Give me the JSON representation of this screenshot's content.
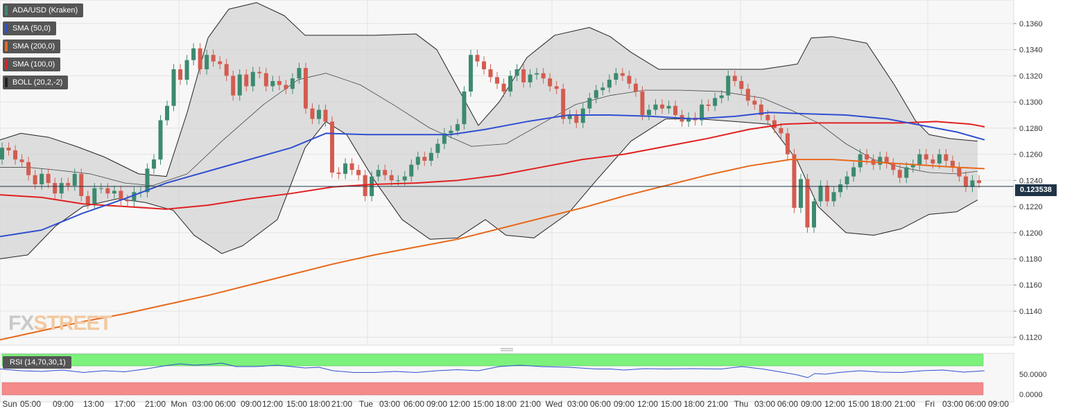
{
  "legend": [
    {
      "label": "ADA/USD (Kraken)",
      "color": "#3c8a6f"
    },
    {
      "label": "SMA (50,0)",
      "color": "#2f4fd0"
    },
    {
      "label": "SMA (200,0)",
      "color": "#e8681b"
    },
    {
      "label": "SMA (100,0)",
      "color": "#e02020"
    },
    {
      "label": "BOLL (20,2,-2)",
      "color": "#222222"
    }
  ],
  "watermark": {
    "part1": "FX",
    "part2": "STREET"
  },
  "last_price_label": "0.123538",
  "rsi_label": "RSI (14,70,30,1)",
  "colors": {
    "bull": "#3c8a6f",
    "bear": "#d35c4f",
    "sma50": "#2f4fd0",
    "sma100": "#e02020",
    "sma200": "#e8681b",
    "boll": "#222222",
    "rsi_line": "#2f4fd0",
    "rsi_over": "#7cf27c",
    "rsi_under": "#f48a8a"
  },
  "chart_data": {
    "type": "candlestick",
    "ylim": [
      0.1114,
      0.1378
    ],
    "y_ticks": [
      "0.1360",
      "0.1340",
      "0.1320",
      "0.1300",
      "0.1280",
      "0.1260",
      "0.1240",
      "0.1220",
      "0.1200",
      "0.1180",
      "0.1160",
      "0.1140",
      "0.1120"
    ],
    "x_ticks": [
      "Sun",
      "05:00",
      "09:00",
      "13:00",
      "17:00",
      "21:00",
      "Mon",
      "03:00",
      "06:00",
      "09:00",
      "12:00",
      "15:00",
      "18:00",
      "21:00",
      "Tue",
      "03:00",
      "06:00",
      "09:00",
      "12:00",
      "15:00",
      "18:00",
      "21:00",
      "Wed",
      "03:00",
      "06:00",
      "09:00",
      "12:00",
      "15:00",
      "18:00",
      "21:00",
      "Thu",
      "03:00",
      "06:00",
      "09:00",
      "12:00",
      "15:00",
      "18:00",
      "21:00",
      "Fri",
      "03:00",
      "06:00",
      "09:00"
    ],
    "last_price": 0.123538,
    "candle_closes": [
      0.1265,
      0.1263,
      0.1256,
      0.1254,
      0.1244,
      0.1237,
      0.1245,
      0.1238,
      0.123,
      0.1238,
      0.1236,
      0.1245,
      0.1228,
      0.1222,
      0.1234,
      0.1234,
      0.123,
      0.1232,
      0.1225,
      0.1224,
      0.1231,
      0.1231,
      0.1249,
      0.1256,
      0.1286,
      0.1297,
      0.1325,
      0.1317,
      0.1332,
      0.1341,
      0.1325,
      0.1336,
      0.1331,
      0.1329,
      0.132,
      0.1305,
      0.1321,
      0.1312,
      0.1323,
      0.1322,
      0.1312,
      0.1316,
      0.1313,
      0.131,
      0.1318,
      0.1326,
      0.1295,
      0.1287,
      0.1294,
      0.1285,
      0.1246,
      0.1245,
      0.1253,
      0.1248,
      0.1244,
      0.1228,
      0.1243,
      0.1248,
      0.1244,
      0.124,
      0.124,
      0.1243,
      0.1252,
      0.1258,
      0.1255,
      0.1261,
      0.1268,
      0.1276,
      0.1278,
      0.1283,
      0.1308,
      0.1336,
      0.1331,
      0.1325,
      0.1319,
      0.1314,
      0.1308,
      0.132,
      0.1325,
      0.1315,
      0.1321,
      0.1322,
      0.1318,
      0.1312,
      0.131,
      0.1287,
      0.129,
      0.1284,
      0.1295,
      0.1303,
      0.1309,
      0.1311,
      0.1317,
      0.1322,
      0.132,
      0.1314,
      0.1308,
      0.129,
      0.1294,
      0.1298,
      0.1295,
      0.1297,
      0.129,
      0.1285,
      0.1288,
      0.1286,
      0.1298,
      0.1297,
      0.1303,
      0.1305,
      0.132,
      0.1316,
      0.131,
      0.1301,
      0.1298,
      0.129,
      0.1286,
      0.128,
      0.1276,
      0.126,
      0.1219,
      0.1241,
      0.1204,
      0.1224,
      0.1236,
      0.1224,
      0.1231,
      0.1237,
      0.1243,
      0.125,
      0.126,
      0.1256,
      0.1252,
      0.1258,
      0.1253,
      0.1248,
      0.1242,
      0.125,
      0.1252,
      0.126,
      0.1256,
      0.1253,
      0.126,
      0.1255,
      0.125,
      0.1243,
      0.1235,
      0.124,
      0.1238
    ],
    "first_open": 0.1256,
    "sma50": [
      [
        0,
        0.1197
      ],
      [
        60,
        0.1202
      ],
      [
        120,
        0.1215
      ],
      [
        180,
        0.1226
      ],
      [
        240,
        0.1238
      ],
      [
        300,
        0.1247
      ],
      [
        360,
        0.1256
      ],
      [
        420,
        0.1265
      ],
      [
        470,
        0.1276
      ],
      [
        530,
        0.1275
      ],
      [
        590,
        0.1275
      ],
      [
        650,
        0.1275
      ],
      [
        700,
        0.1279
      ],
      [
        760,
        0.1285
      ],
      [
        820,
        0.129
      ],
      [
        880,
        0.129
      ],
      [
        940,
        0.1289
      ],
      [
        1000,
        0.1287
      ],
      [
        1060,
        0.1289
      ],
      [
        1110,
        0.1292
      ],
      [
        1160,
        0.1291
      ],
      [
        1220,
        0.129
      ],
      [
        1280,
        0.1287
      ],
      [
        1340,
        0.1281
      ],
      [
        1380,
        0.1277
      ],
      [
        1420,
        0.1271
      ]
    ],
    "sma100": [
      [
        0,
        0.1229
      ],
      [
        60,
        0.1227
      ],
      [
        120,
        0.1222
      ],
      [
        180,
        0.122
      ],
      [
        240,
        0.1218
      ],
      [
        300,
        0.1221
      ],
      [
        360,
        0.1226
      ],
      [
        420,
        0.123
      ],
      [
        480,
        0.1235
      ],
      [
        540,
        0.1237
      ],
      [
        600,
        0.1238
      ],
      [
        660,
        0.124
      ],
      [
        720,
        0.1244
      ],
      [
        780,
        0.125
      ],
      [
        840,
        0.1256
      ],
      [
        900,
        0.126
      ],
      [
        960,
        0.1266
      ],
      [
        1020,
        0.1272
      ],
      [
        1080,
        0.1279
      ],
      [
        1130,
        0.1283
      ],
      [
        1180,
        0.1284
      ],
      [
        1240,
        0.1284
      ],
      [
        1300,
        0.1284
      ],
      [
        1350,
        0.1285
      ],
      [
        1400,
        0.1283
      ],
      [
        1420,
        0.1281
      ]
    ],
    "sma200": [
      [
        0,
        0.1118
      ],
      [
        60,
        0.1125
      ],
      [
        120,
        0.1132
      ],
      [
        180,
        0.1138
      ],
      [
        240,
        0.1145
      ],
      [
        300,
        0.1152
      ],
      [
        360,
        0.116
      ],
      [
        420,
        0.1168
      ],
      [
        480,
        0.1176
      ],
      [
        540,
        0.1183
      ],
      [
        600,
        0.1189
      ],
      [
        660,
        0.1195
      ],
      [
        720,
        0.1203
      ],
      [
        780,
        0.1211
      ],
      [
        840,
        0.1219
      ],
      [
        900,
        0.1228
      ],
      [
        960,
        0.1236
      ],
      [
        1020,
        0.1244
      ],
      [
        1080,
        0.1251
      ],
      [
        1140,
        0.1256
      ],
      [
        1200,
        0.1256
      ],
      [
        1260,
        0.1254
      ],
      [
        1320,
        0.1252
      ],
      [
        1380,
        0.125
      ],
      [
        1420,
        0.1249
      ]
    ],
    "boll_upper": [
      [
        0,
        0.1271
      ],
      [
        30,
        0.1276
      ],
      [
        70,
        0.1273
      ],
      [
        110,
        0.1266
      ],
      [
        150,
        0.1258
      ],
      [
        200,
        0.1245
      ],
      [
        240,
        0.1243
      ],
      [
        270,
        0.1292
      ],
      [
        300,
        0.1349
      ],
      [
        330,
        0.1371
      ],
      [
        370,
        0.1376
      ],
      [
        410,
        0.1366
      ],
      [
        440,
        0.1351
      ],
      [
        480,
        0.1351
      ],
      [
        540,
        0.1351
      ],
      [
        600,
        0.1352
      ],
      [
        630,
        0.134
      ],
      [
        660,
        0.1311
      ],
      [
        690,
        0.1282
      ],
      [
        720,
        0.13
      ],
      [
        760,
        0.1334
      ],
      [
        800,
        0.1351
      ],
      [
        850,
        0.1357
      ],
      [
        880,
        0.135
      ],
      [
        910,
        0.1338
      ],
      [
        950,
        0.1325
      ],
      [
        1000,
        0.1325
      ],
      [
        1050,
        0.1325
      ],
      [
        1100,
        0.1325
      ],
      [
        1150,
        0.1329
      ],
      [
        1170,
        0.1349
      ],
      [
        1200,
        0.135
      ],
      [
        1250,
        0.1345
      ],
      [
        1290,
        0.1313
      ],
      [
        1320,
        0.1286
      ],
      [
        1340,
        0.1275
      ],
      [
        1370,
        0.1272
      ],
      [
        1410,
        0.127
      ]
    ],
    "boll_mid": [
      [
        0,
        0.125
      ],
      [
        40,
        0.125
      ],
      [
        80,
        0.1248
      ],
      [
        130,
        0.1245
      ],
      [
        180,
        0.1238
      ],
      [
        220,
        0.1236
      ],
      [
        270,
        0.1245
      ],
      [
        320,
        0.127
      ],
      [
        380,
        0.1298
      ],
      [
        430,
        0.1317
      ],
      [
        470,
        0.1322
      ],
      [
        520,
        0.1313
      ],
      [
        570,
        0.1297
      ],
      [
        620,
        0.128
      ],
      [
        680,
        0.1266
      ],
      [
        730,
        0.1268
      ],
      [
        780,
        0.1283
      ],
      [
        830,
        0.1298
      ],
      [
        880,
        0.1305
      ],
      [
        930,
        0.1309
      ],
      [
        980,
        0.1309
      ],
      [
        1040,
        0.1308
      ],
      [
        1100,
        0.1303
      ],
      [
        1140,
        0.1294
      ],
      [
        1180,
        0.1284
      ],
      [
        1220,
        0.1268
      ],
      [
        1260,
        0.1256
      ],
      [
        1300,
        0.125
      ],
      [
        1340,
        0.1246
      ],
      [
        1380,
        0.1245
      ],
      [
        1410,
        0.1247
      ]
    ],
    "boll_lower": [
      [
        0,
        0.118
      ],
      [
        40,
        0.1183
      ],
      [
        80,
        0.1205
      ],
      [
        120,
        0.122
      ],
      [
        170,
        0.1226
      ],
      [
        210,
        0.1223
      ],
      [
        250,
        0.1217
      ],
      [
        280,
        0.1198
      ],
      [
        320,
        0.1184
      ],
      [
        350,
        0.119
      ],
      [
        400,
        0.121
      ],
      [
        440,
        0.1265
      ],
      [
        470,
        0.1285
      ],
      [
        500,
        0.1275
      ],
      [
        540,
        0.124
      ],
      [
        580,
        0.121
      ],
      [
        620,
        0.1195
      ],
      [
        660,
        0.1196
      ],
      [
        700,
        0.121
      ],
      [
        730,
        0.1198
      ],
      [
        770,
        0.1196
      ],
      [
        820,
        0.1215
      ],
      [
        860,
        0.124
      ],
      [
        910,
        0.127
      ],
      [
        960,
        0.1287
      ],
      [
        1010,
        0.1287
      ],
      [
        1060,
        0.1285
      ],
      [
        1110,
        0.1283
      ],
      [
        1150,
        0.1255
      ],
      [
        1180,
        0.122
      ],
      [
        1220,
        0.12
      ],
      [
        1260,
        0.1198
      ],
      [
        1300,
        0.1203
      ],
      [
        1340,
        0.1214
      ],
      [
        1380,
        0.1216
      ],
      [
        1410,
        0.1225
      ]
    ],
    "rsi_ylim": [
      0,
      100
    ],
    "rsi_ticks": [
      "50.0000",
      "0.0000"
    ],
    "rsi_overbought": 70,
    "rsi_oversold": 30,
    "rsi": [
      [
        0,
        55
      ],
      [
        30,
        50
      ],
      [
        60,
        48
      ],
      [
        90,
        52
      ],
      [
        120,
        45
      ],
      [
        150,
        50
      ],
      [
        180,
        47
      ],
      [
        210,
        55
      ],
      [
        240,
        65
      ],
      [
        260,
        70
      ],
      [
        280,
        66
      ],
      [
        300,
        68
      ],
      [
        320,
        72
      ],
      [
        340,
        62
      ],
      [
        370,
        62
      ],
      [
        400,
        66
      ],
      [
        440,
        58
      ],
      [
        460,
        60
      ],
      [
        480,
        50
      ],
      [
        510,
        45
      ],
      [
        540,
        45
      ],
      [
        570,
        48
      ],
      [
        600,
        45
      ],
      [
        630,
        50
      ],
      [
        660,
        53
      ],
      [
        690,
        50
      ],
      [
        720,
        62
      ],
      [
        750,
        66
      ],
      [
        780,
        62
      ],
      [
        820,
        60
      ],
      [
        860,
        55
      ],
      [
        880,
        55
      ],
      [
        900,
        52
      ],
      [
        930,
        56
      ],
      [
        960,
        55
      ],
      [
        1000,
        56
      ],
      [
        1040,
        55
      ],
      [
        1070,
        62
      ],
      [
        1100,
        55
      ],
      [
        1130,
        45
      ],
      [
        1150,
        38
      ],
      [
        1165,
        30
      ],
      [
        1175,
        42
      ],
      [
        1190,
        40
      ],
      [
        1210,
        45
      ],
      [
        1240,
        50
      ],
      [
        1270,
        46
      ],
      [
        1300,
        45
      ],
      [
        1330,
        50
      ],
      [
        1360,
        52
      ],
      [
        1390,
        46
      ],
      [
        1405,
        48
      ],
      [
        1420,
        50
      ]
    ]
  }
}
